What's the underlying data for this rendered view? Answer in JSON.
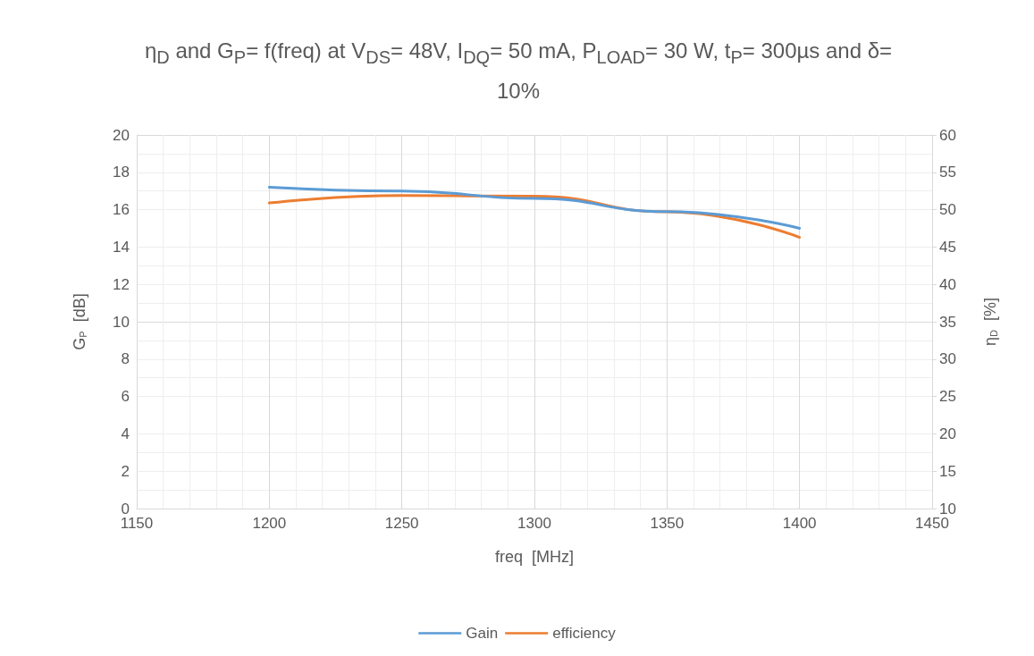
{
  "chart_data": {
    "type": "line",
    "title": "η$_{D}$ and G$_{P}$= f(freq) at V$_{DS}$= 48V,  I$_{DQ}$= 50 mA, P$_{LOAD}$= 30 W,  t$_{P}$= 300µs and δ= 10%",
    "xlabel": "freq  [MHz]",
    "ylabel": "G$_{P}$  [dB]",
    "y2label": "η$_{D}$  [%]",
    "x": [
      1200,
      1250,
      1300,
      1350,
      1400
    ],
    "series": [
      {
        "name": "Gain",
        "color": "#5b9bd5",
        "values": [
          17.2,
          17.0,
          16.6,
          15.9,
          15.0
        ]
      },
      {
        "name": "efficiency",
        "color": "#ed7d31",
        "axis": "y2",
        "values": [
          50.9,
          51.9,
          51.8,
          49.7,
          46.3
        ]
      }
    ],
    "xlim": [
      1150,
      1450
    ],
    "xticks": [
      1150,
      1200,
      1250,
      1300,
      1350,
      1400,
      1450
    ],
    "ylim": [
      0,
      20
    ],
    "yticks": [
      0,
      2,
      4,
      6,
      8,
      10,
      12,
      14,
      16,
      18,
      20
    ],
    "y2lim": [
      10,
      60
    ],
    "y2ticks": [
      10,
      15,
      20,
      25,
      30,
      35,
      40,
      45,
      50,
      55,
      60
    ],
    "grid": true,
    "legend": "bottom",
    "marker": "none",
    "line_style": "solid"
  }
}
